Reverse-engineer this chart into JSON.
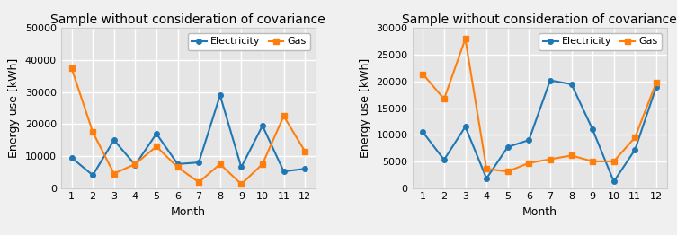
{
  "title": "Sample without consideration of covariance",
  "xlabel": "Month",
  "ylabel": "Energy use [kWh]",
  "months": [
    1,
    2,
    3,
    4,
    5,
    6,
    7,
    8,
    9,
    10,
    11,
    12
  ],
  "left": {
    "electricity": [
      9500,
      4000,
      15000,
      7200,
      17000,
      7500,
      8000,
      29000,
      6500,
      19500,
      5200,
      6000
    ],
    "gas": [
      37500,
      17500,
      4500,
      7500,
      13000,
      6500,
      1800,
      7500,
      1200,
      7500,
      22500,
      11500
    ]
  },
  "right": {
    "electricity": [
      10500,
      5300,
      11500,
      1800,
      7700,
      9000,
      20200,
      19500,
      11000,
      1200,
      7200,
      19000
    ],
    "gas": [
      21400,
      16700,
      28000,
      3600,
      3100,
      4700,
      5400,
      6100,
      5000,
      5000,
      9500,
      19800
    ]
  },
  "left_ylim": [
    0,
    50000
  ],
  "right_ylim": [
    0,
    30000
  ],
  "left_yticks": [
    0,
    10000,
    20000,
    30000,
    40000,
    50000
  ],
  "right_yticks": [
    0,
    5000,
    10000,
    15000,
    20000,
    25000,
    30000
  ],
  "elec_color": "#1f77b4",
  "gas_color": "#ff7f0e",
  "marker_elec": "o",
  "marker_gas": "s",
  "legend_labels": [
    "Electricity",
    "Gas"
  ],
  "bg_color": "#e5e5e5",
  "grid_color": "#ffffff",
  "title_fontsize": 10,
  "label_fontsize": 9,
  "tick_fontsize": 8,
  "legend_fontsize": 8
}
